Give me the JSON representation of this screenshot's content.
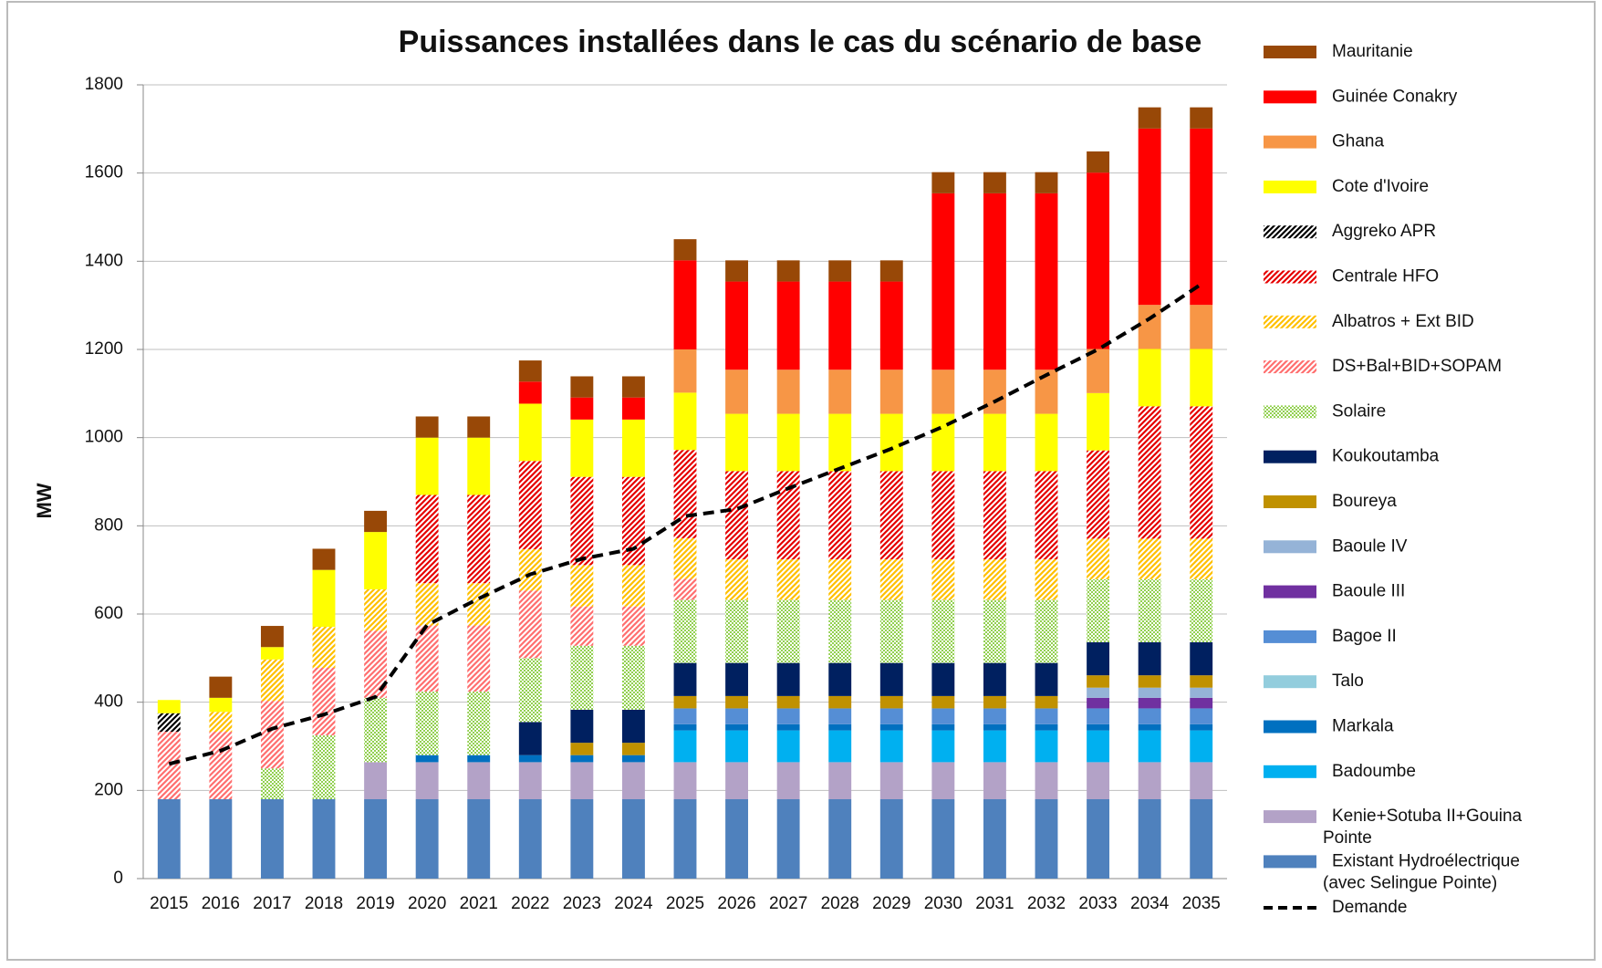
{
  "chart_data": {
    "type": "bar",
    "stacked": true,
    "title": "Puissances installées dans le cas du scénario de base",
    "y_label": "MW",
    "categories": [
      "2015",
      "2016",
      "2017",
      "2018",
      "2019",
      "2020",
      "2021",
      "2022",
      "2023",
      "2024",
      "2025",
      "2026",
      "2027",
      "2028",
      "2029",
      "2030",
      "2031",
      "2032",
      "2033",
      "2034",
      "2035"
    ],
    "ylim": [
      0,
      1800
    ],
    "yticks": [
      0,
      200,
      400,
      600,
      800,
      1000,
      1200,
      1400,
      1600,
      1800
    ],
    "grid": true,
    "legend": "right",
    "series": [
      {
        "name": "Existant Hydroélectrique (avec Selingue Pointe)",
        "color": "#4f81bd",
        "values": [
          180,
          180,
          180,
          180,
          180,
          180,
          180,
          180,
          180,
          180,
          180,
          180,
          180,
          180,
          180,
          180,
          180,
          180,
          180,
          180,
          180
        ]
      },
      {
        "name": "Kenie+Sotuba II+Gouina Pointe",
        "color": "#b3a2c7",
        "values": [
          0,
          0,
          0,
          0,
          84,
          84,
          84,
          84,
          84,
          84,
          84,
          84,
          84,
          84,
          84,
          84,
          84,
          84,
          84,
          84,
          84
        ]
      },
      {
        "name": "Badoumbe",
        "color": "#00b0f0",
        "values": [
          0,
          0,
          0,
          0,
          0,
          0,
          0,
          0,
          0,
          0,
          72,
          72,
          72,
          72,
          72,
          72,
          72,
          72,
          72,
          72,
          72
        ]
      },
      {
        "name": "Markala",
        "color": "#0070c0",
        "values": [
          0,
          0,
          0,
          0,
          0,
          16,
          16,
          16,
          16,
          16,
          14,
          14,
          14,
          14,
          14,
          14,
          14,
          14,
          14,
          14,
          14
        ]
      },
      {
        "name": "Talo",
        "color": "#93cddd",
        "values": [
          0,
          0,
          0,
          0,
          0,
          0,
          0,
          0,
          0,
          0,
          0,
          0,
          0,
          0,
          0,
          0,
          0,
          0,
          0,
          0,
          0
        ]
      },
      {
        "name": "Bagoe II",
        "color": "#558ed5",
        "values": [
          0,
          0,
          0,
          0,
          0,
          0,
          0,
          0,
          0,
          0,
          36,
          36,
          36,
          36,
          36,
          36,
          36,
          36,
          36,
          36,
          36
        ]
      },
      {
        "name": "Baoule III",
        "color": "#7030a0",
        "values": [
          0,
          0,
          0,
          0,
          0,
          0,
          0,
          0,
          0,
          0,
          0,
          0,
          0,
          0,
          0,
          0,
          0,
          0,
          24,
          24,
          24
        ]
      },
      {
        "name": "Baoule IV",
        "color": "#95b3d7",
        "values": [
          0,
          0,
          0,
          0,
          0,
          0,
          0,
          0,
          0,
          0,
          0,
          0,
          0,
          0,
          0,
          0,
          0,
          0,
          23,
          23,
          23
        ]
      },
      {
        "name": "Boureya",
        "color": "#c09100",
        "values": [
          0,
          0,
          0,
          0,
          0,
          0,
          0,
          0,
          28,
          28,
          28,
          28,
          28,
          28,
          28,
          28,
          28,
          28,
          28,
          28,
          28
        ]
      },
      {
        "name": "Koukoutamba",
        "color": "#002060",
        "values": [
          0,
          0,
          0,
          0,
          0,
          0,
          0,
          75,
          75,
          75,
          75,
          75,
          75,
          75,
          75,
          75,
          75,
          75,
          75,
          75,
          75
        ]
      },
      {
        "name": "Solaire",
        "color": "#92d050",
        "pattern": "dots",
        "values": [
          0,
          0,
          70,
          145,
          146,
          144,
          144,
          145,
          145,
          145,
          143,
          143,
          143,
          143,
          143,
          143,
          143,
          143,
          143,
          143,
          143
        ]
      },
      {
        "name": "DS+Bal+BID+SOPAM",
        "color": "#ff6f6f",
        "pattern": "hatch",
        "values": [
          153,
          153,
          153,
          153,
          152,
          150,
          150,
          153,
          89,
          89,
          48,
          0,
          0,
          0,
          0,
          0,
          0,
          0,
          0,
          0,
          0
        ]
      },
      {
        "name": "Albatros + Ext BID",
        "color": "#ffc000",
        "pattern": "hatch",
        "values": [
          0,
          45,
          94,
          93,
          94,
          96,
          96,
          94,
          94,
          94,
          92,
          92,
          92,
          92,
          92,
          92,
          92,
          92,
          92,
          92,
          92
        ]
      },
      {
        "name": "Centrale HFO",
        "color": "#e60000",
        "pattern": "hatch",
        "values": [
          0,
          0,
          0,
          0,
          0,
          200,
          200,
          200,
          200,
          200,
          200,
          200,
          200,
          200,
          200,
          200,
          200,
          200,
          200,
          300,
          300
        ]
      },
      {
        "name": "Aggreko APR",
        "color": "#000000",
        "pattern": "hatch",
        "values": [
          42,
          0,
          0,
          0,
          0,
          0,
          0,
          0,
          0,
          0,
          0,
          0,
          0,
          0,
          0,
          0,
          0,
          0,
          0,
          0,
          0
        ]
      },
      {
        "name": "Cote d'Ivoire",
        "color": "#ffff00",
        "values": [
          30,
          32,
          28,
          129,
          130,
          130,
          130,
          130,
          130,
          130,
          130,
          130,
          130,
          130,
          130,
          130,
          130,
          130,
          130,
          130,
          130
        ]
      },
      {
        "name": "Ghana",
        "color": "#f79646",
        "values": [
          0,
          0,
          0,
          0,
          0,
          0,
          0,
          0,
          0,
          0,
          98,
          100,
          100,
          100,
          100,
          100,
          100,
          100,
          100,
          100,
          100
        ]
      },
      {
        "name": "Guinée Conakry",
        "color": "#ff0000",
        "values": [
          0,
          0,
          0,
          0,
          0,
          0,
          0,
          50,
          50,
          50,
          202,
          200,
          200,
          200,
          200,
          400,
          400,
          400,
          400,
          400,
          400
        ]
      },
      {
        "name": "Mauritanie",
        "color": "#984807",
        "values": [
          0,
          48,
          48,
          48,
          48,
          48,
          48,
          48,
          48,
          48,
          48,
          48,
          48,
          48,
          48,
          48,
          48,
          48,
          48,
          48,
          48
        ]
      },
      {
        "name": "Demande",
        "type": "line",
        "color": "#000000",
        "dashed": true,
        "values": [
          260,
          290,
          340,
          372,
          412,
          575,
          635,
          690,
          725,
          748,
          822,
          838,
          885,
          930,
          975,
          1025,
          1082,
          1142,
          1200,
          1270,
          1348
        ]
      }
    ]
  }
}
